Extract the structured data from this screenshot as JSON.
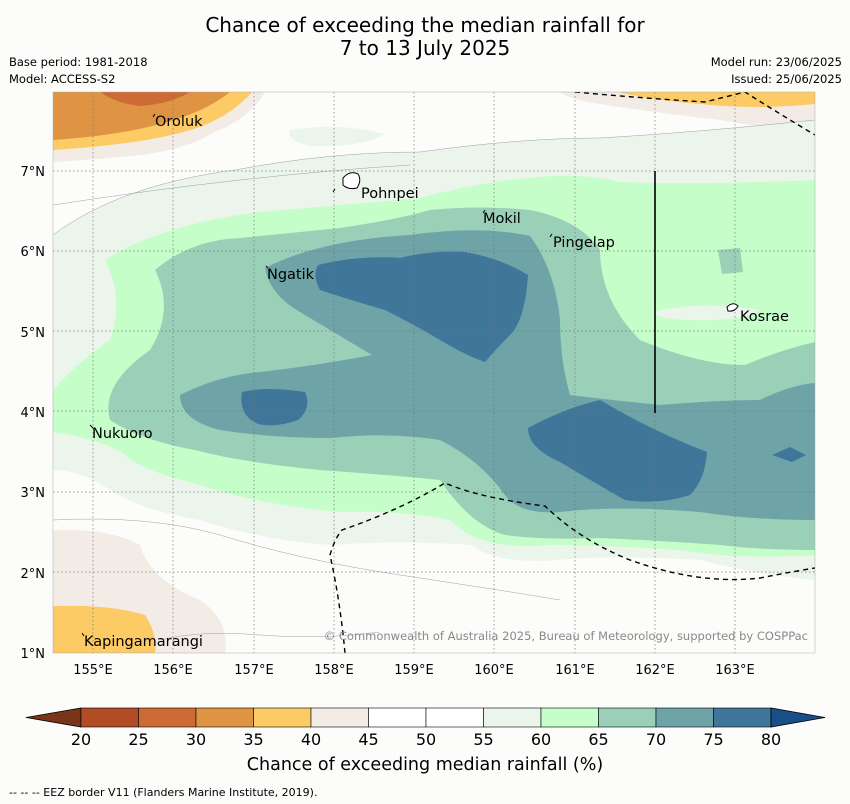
{
  "title_line1": "Chance of exceeding the median rainfall for",
  "title_line2": "7 to 13 July 2025",
  "meta_left": [
    "Base period: 1981-2018",
    "Model: ACCESS-S2"
  ],
  "meta_right": [
    "Model run: 23/06/2025",
    "Issued: 25/06/2025"
  ],
  "x_ticks": [
    "155°E",
    "156°E",
    "157°E",
    "158°E",
    "159°E",
    "160°E",
    "161°E",
    "162°E",
    "163°E"
  ],
  "y_ticks": [
    "1°N",
    "2°N",
    "3°N",
    "4°N",
    "5°N",
    "6°N",
    "7°N"
  ],
  "places": [
    "Oroluk",
    "Pohnpei",
    "Mokil",
    "Pingelap",
    "Ngatik",
    "Kosrae",
    "Nukuoro",
    "Kapingamarangi"
  ],
  "copyright": "© Commonwealth of Australia 2025, Bureau of Meteorology, supported by COSPPac",
  "colorbar": {
    "levels": [
      "20",
      "25",
      "30",
      "35",
      "40",
      "45",
      "50",
      "55",
      "60",
      "65",
      "70",
      "75",
      "80"
    ],
    "colors": [
      "#7a3419",
      "#b24c27",
      "#cd6a35",
      "#df9444",
      "#fdcb66",
      "#f3ece6",
      "#ffffff",
      "#ffffff",
      "#ebf5eb",
      "#c6fec9",
      "#9ad0b7",
      "#6ea3a7",
      "#3f7699",
      "#1a4e86"
    ],
    "title": "Chance of exceeding median rainfall (%)"
  },
  "legend_eez": "--  --  -- EEZ border V11 (Flanders Marine Institute, 2019)."
}
